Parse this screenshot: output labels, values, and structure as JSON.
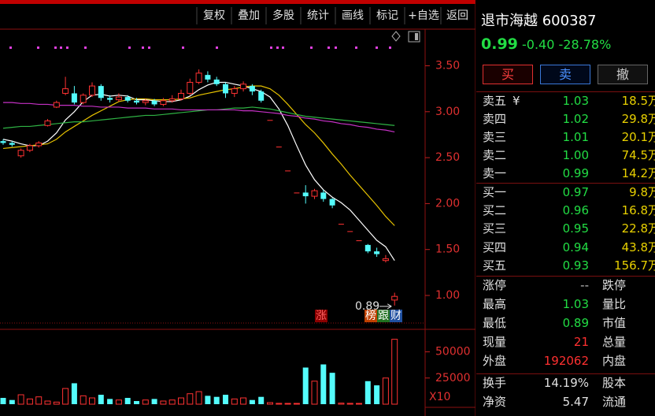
{
  "toolbar": {
    "buttons": [
      "复权",
      "叠加",
      "多股",
      "统计",
      "画线",
      "标记",
      "+自选",
      "返回"
    ]
  },
  "quote": {
    "name": "退市海越",
    "code": "600387",
    "price": "0.99",
    "change": "-0.40",
    "change_pct": "-28.78%"
  },
  "actions": [
    "买",
    "卖",
    "撤"
  ],
  "order_book": {
    "currency": "¥",
    "asks": [
      [
        "卖五",
        "1.03",
        "18.5万"
      ],
      [
        "卖四",
        "1.02",
        "29.8万"
      ],
      [
        "卖三",
        "1.01",
        "20.1万"
      ],
      [
        "卖二",
        "1.00",
        "74.5万"
      ],
      [
        "卖一",
        "0.99",
        "14.2万"
      ]
    ],
    "bids": [
      [
        "买一",
        "0.97",
        "9.8万"
      ],
      [
        "买二",
        "0.96",
        "16.8万"
      ],
      [
        "买三",
        "0.95",
        "22.8万"
      ],
      [
        "买四",
        "0.94",
        "43.8万"
      ],
      [
        "买五",
        "0.93",
        "156.7万"
      ]
    ]
  },
  "stats": [
    [
      "涨停",
      "--",
      "跌停"
    ],
    [
      "最高",
      "1.03",
      "量比"
    ],
    [
      "最低",
      "0.89",
      "市值"
    ],
    [
      "现量",
      "21",
      "总量"
    ],
    [
      "外盘",
      "192062",
      "内盘"
    ],
    [
      "换手",
      "14.19%",
      "股本"
    ],
    [
      "净资",
      "5.47",
      "流通"
    ]
  ],
  "chart_data": [
    {
      "type": "candlestick",
      "up_color": "#ff3232",
      "down_color": "#54fcfc",
      "open": [
        2.68,
        2.66,
        2.52,
        2.58,
        2.63,
        2.85,
        3.05,
        3.2,
        3.2,
        3.1,
        3.18,
        3.28,
        3.15,
        3.13,
        3.16,
        3.12,
        3.1,
        3.12,
        3.08,
        3.12,
        3.14,
        3.2,
        3.32,
        3.4,
        3.35,
        3.3,
        3.2,
        3.25,
        3.28,
        3.22,
        2.91,
        2.62,
        2.36,
        2.12,
        2.12,
        2.08,
        2.12,
        2.05,
        1.78,
        1.7,
        1.6,
        1.55,
        1.48,
        1.38,
        0.95
      ],
      "close": [
        2.66,
        2.64,
        2.58,
        2.63,
        2.66,
        2.9,
        3.1,
        3.25,
        3.1,
        3.18,
        3.28,
        3.15,
        3.13,
        3.16,
        3.12,
        3.1,
        3.12,
        3.08,
        3.12,
        3.14,
        3.2,
        3.32,
        3.42,
        3.35,
        3.3,
        3.2,
        3.25,
        3.3,
        3.22,
        3.12,
        2.91,
        2.62,
        2.36,
        2.12,
        2.08,
        2.14,
        2.05,
        1.98,
        1.78,
        1.7,
        1.6,
        1.48,
        1.45,
        1.4,
        0.99
      ],
      "high": [
        2.7,
        2.68,
        2.6,
        2.65,
        2.68,
        2.92,
        3.12,
        3.38,
        3.28,
        3.2,
        3.32,
        3.3,
        3.18,
        3.2,
        3.18,
        3.15,
        3.14,
        3.14,
        3.15,
        3.18,
        3.24,
        3.36,
        3.46,
        3.44,
        3.38,
        3.32,
        3.28,
        3.33,
        3.3,
        3.24,
        2.91,
        2.62,
        2.36,
        2.12,
        2.2,
        2.16,
        2.15,
        2.06,
        1.78,
        1.7,
        1.6,
        1.56,
        1.52,
        1.44,
        1.03
      ],
      "low": [
        2.64,
        2.62,
        2.5,
        2.56,
        2.61,
        2.84,
        3.04,
        3.18,
        3.08,
        3.08,
        3.16,
        3.12,
        3.1,
        3.11,
        3.1,
        3.08,
        3.07,
        3.06,
        3.06,
        3.1,
        3.12,
        3.18,
        3.3,
        3.32,
        3.28,
        3.15,
        3.16,
        3.22,
        3.18,
        3.1,
        2.91,
        2.62,
        2.36,
        2.12,
        2.0,
        2.05,
        2.02,
        1.95,
        1.78,
        1.7,
        1.6,
        1.46,
        1.42,
        1.36,
        0.89
      ],
      "lines": [
        {
          "color": "#ffffff",
          "values": [
            2.7,
            2.68,
            2.65,
            2.63,
            2.63,
            2.68,
            2.77,
            2.91,
            3.0,
            3.11,
            3.18,
            3.19,
            3.17,
            3.18,
            3.17,
            3.13,
            3.13,
            3.12,
            3.11,
            3.11,
            3.13,
            3.17,
            3.24,
            3.29,
            3.32,
            3.32,
            3.3,
            3.28,
            3.25,
            3.22,
            3.16,
            3.03,
            2.85,
            2.63,
            2.42,
            2.26,
            2.15,
            2.07,
            2.01,
            1.93,
            1.82,
            1.71,
            1.6,
            1.53,
            1.38
          ]
        },
        {
          "color": "#e6c200",
          "values": [
            2.6,
            2.61,
            2.62,
            2.63,
            2.64,
            2.65,
            2.7,
            2.78,
            2.84,
            2.9,
            2.96,
            3.01,
            3.06,
            3.11,
            3.13,
            3.14,
            3.14,
            3.13,
            3.13,
            3.13,
            3.14,
            3.15,
            3.18,
            3.2,
            3.22,
            3.24,
            3.25,
            3.27,
            3.28,
            3.28,
            3.25,
            3.18,
            3.08,
            2.97,
            2.86,
            2.77,
            2.66,
            2.54,
            2.43,
            2.31,
            2.2,
            2.09,
            1.98,
            1.86,
            1.76
          ]
        },
        {
          "color": "#2fb344",
          "values": [
            2.82,
            2.83,
            2.84,
            2.84,
            2.85,
            2.86,
            2.87,
            2.88,
            2.89,
            2.89,
            2.9,
            2.91,
            2.92,
            2.93,
            2.94,
            2.95,
            2.96,
            2.96,
            2.97,
            2.98,
            2.99,
            3.0,
            3.01,
            3.02,
            3.02,
            3.03,
            3.04,
            3.04,
            3.05,
            3.04,
            3.03,
            3.01,
            2.99,
            2.97,
            2.95,
            2.94,
            2.93,
            2.92,
            2.91,
            2.9,
            2.89,
            2.88,
            2.87,
            2.86,
            2.85
          ]
        },
        {
          "color": "#c531c5",
          "values": [
            3.1,
            3.1,
            3.09,
            3.09,
            3.08,
            3.08,
            3.07,
            3.07,
            3.07,
            3.06,
            3.06,
            3.05,
            3.05,
            3.05,
            3.04,
            3.04,
            3.04,
            3.03,
            3.03,
            3.03,
            3.02,
            3.02,
            3.02,
            3.02,
            3.02,
            3.02,
            3.02,
            3.01,
            3.01,
            3.0,
            2.99,
            2.98,
            2.96,
            2.95,
            2.93,
            2.92,
            2.9,
            2.89,
            2.87,
            2.86,
            2.84,
            2.83,
            2.81,
            2.8,
            2.78
          ]
        }
      ],
      "ylim": [
        0.7,
        3.89
      ],
      "yticks": [
        {
          "value": 1,
          "label": "1.00"
        },
        {
          "value": 1.5,
          "label": "1.50"
        },
        {
          "value": 2,
          "label": "2.00"
        },
        {
          "value": 2.5,
          "label": "2.50"
        },
        {
          "value": 3,
          "label": "3.00"
        },
        {
          "value": 3.5,
          "label": "3.50"
        }
      ],
      "low_label": "0.89",
      "badges": [
        "涨",
        "榜",
        "跟",
        "财"
      ]
    },
    {
      "type": "bar",
      "values": [
        6000,
        4000,
        9000,
        5000,
        7000,
        3000,
        2000,
        15000,
        20000,
        8000,
        6000,
        9000,
        5000,
        4000,
        6000,
        3000,
        4000,
        5000,
        3000,
        4000,
        6000,
        10000,
        12000,
        8000,
        7000,
        9000,
        5000,
        6000,
        4000,
        7000,
        1500,
        800,
        600,
        500,
        35000,
        22000,
        38000,
        30000,
        1000,
        800,
        700,
        22000,
        18000,
        25000,
        62000
      ],
      "ylim": [
        0,
        70000
      ],
      "yticks": [
        25000,
        50000
      ],
      "multiplier": "X10"
    }
  ]
}
